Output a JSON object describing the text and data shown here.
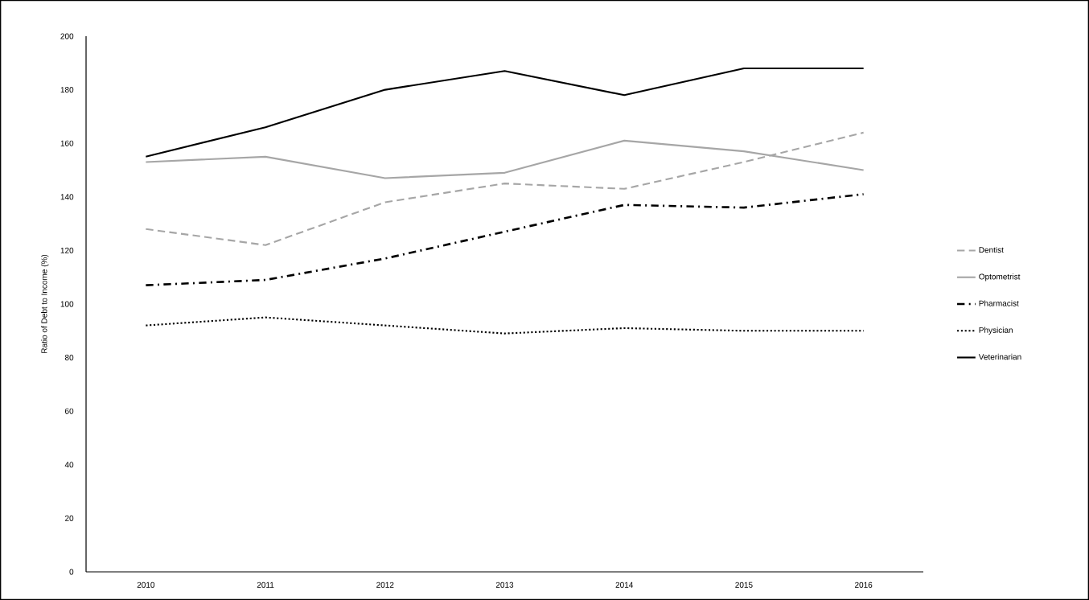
{
  "chart_data": {
    "type": "line",
    "ylabel": "Ratio of Debt to Income (%)",
    "categories": [
      "2010",
      "2011",
      "2012",
      "2013",
      "2014",
      "2015",
      "2016"
    ],
    "series": [
      {
        "name": "Dentist",
        "color": "#a6a6a6",
        "line_style": "dashed",
        "values": [
          128,
          122,
          138,
          145,
          143,
          153,
          164
        ]
      },
      {
        "name": "Optometrist",
        "color": "#a6a6a6",
        "line_style": "solid",
        "values": [
          153,
          155,
          147,
          149,
          161,
          157,
          150
        ]
      },
      {
        "name": "Pharmacist",
        "color": "#000000",
        "line_style": "dashdot",
        "values": [
          107,
          109,
          117,
          127,
          137,
          136,
          141
        ]
      },
      {
        "name": "Physician",
        "color": "#000000",
        "line_style": "dotted",
        "values": [
          92,
          95,
          92,
          89,
          91,
          90,
          90
        ]
      },
      {
        "name": "Veterinarian",
        "color": "#000000",
        "line_style": "solid",
        "values": [
          155,
          166,
          180,
          187,
          178,
          188,
          188
        ]
      }
    ],
    "ylim": [
      0,
      200
    ],
    "yticks": [
      0,
      20,
      40,
      60,
      80,
      100,
      120,
      140,
      160,
      180,
      200
    ],
    "grid": false,
    "legend": "right",
    "marker": "none"
  }
}
